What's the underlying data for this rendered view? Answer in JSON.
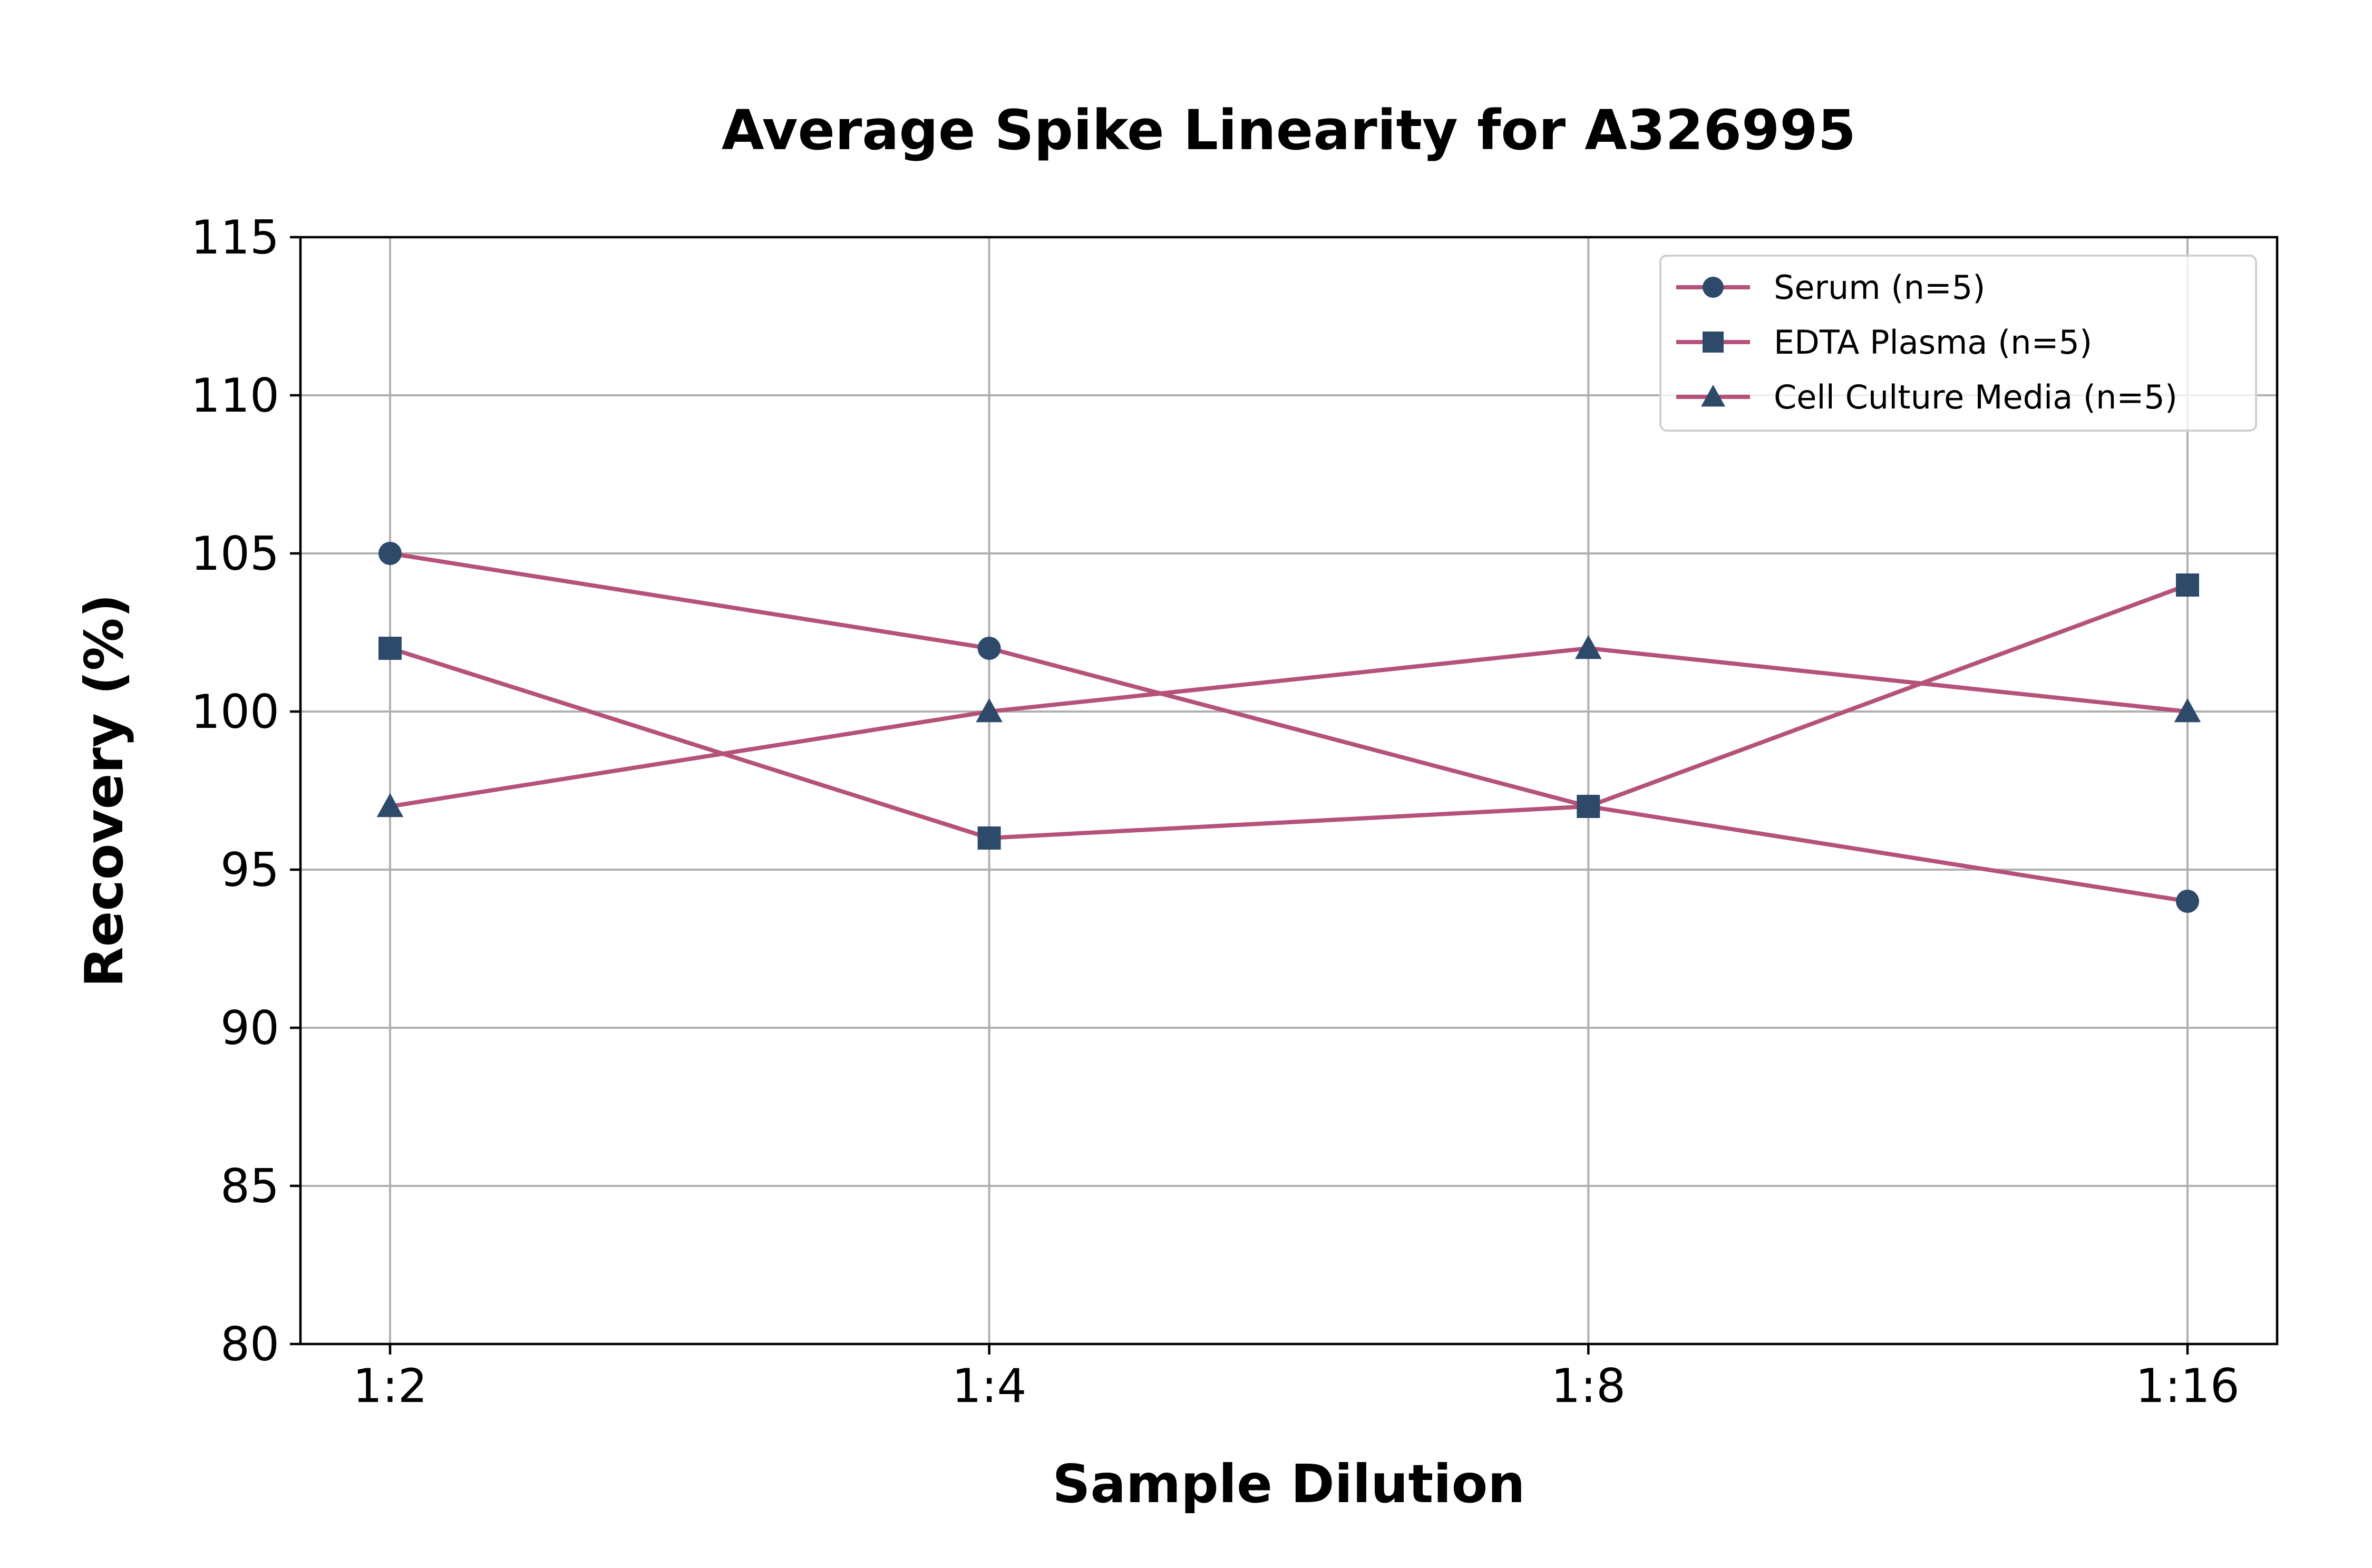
{
  "chart_data": {
    "type": "line",
    "title": "Average Spike Linearity for A326995",
    "xlabel": "Sample Dilution",
    "ylabel": "Recovery (%)",
    "categories": [
      "1:2",
      "1:4",
      "1:8",
      "1:16"
    ],
    "ylim": [
      80,
      115
    ],
    "yticks": [
      80,
      85,
      90,
      95,
      100,
      105,
      110,
      115
    ],
    "grid": true,
    "legend_position": "top-right",
    "line_color": "#b5527a",
    "marker_color": "#2e4a6b",
    "series": [
      {
        "name": "Serum (n=5)",
        "marker": "circle",
        "values": [
          105,
          102,
          97,
          94
        ]
      },
      {
        "name": "EDTA Plasma (n=5)",
        "marker": "square",
        "values": [
          102,
          96,
          97,
          104
        ]
      },
      {
        "name": "Cell Culture Media (n=5)",
        "marker": "triangle",
        "values": [
          97,
          100,
          102,
          100
        ]
      }
    ]
  }
}
